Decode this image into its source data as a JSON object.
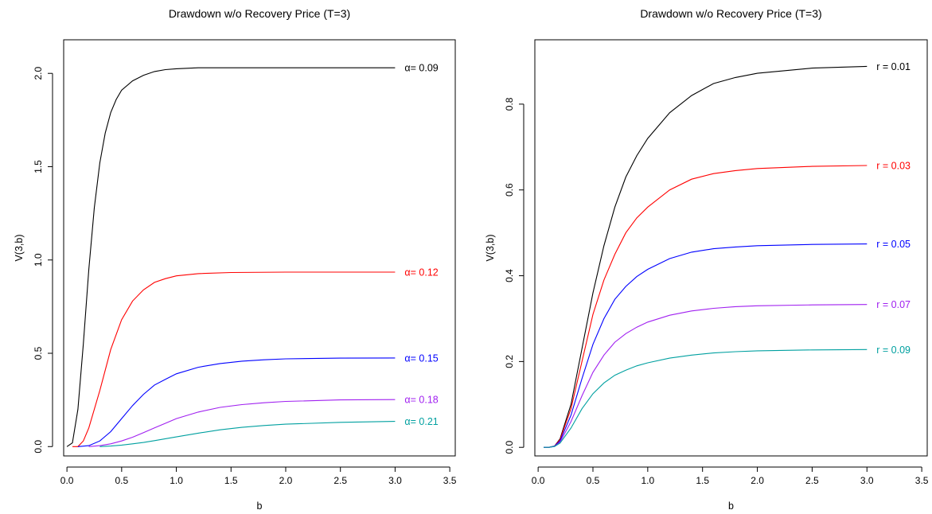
{
  "chart_data": [
    {
      "type": "line",
      "title": "Drawdown w/o Recovery Price (T=3)",
      "xlabel": "b",
      "ylabel": "V(3,b)",
      "xlim": [
        -0.03,
        3.55
      ],
      "ylim": [
        -0.05,
        2.18
      ],
      "xticks": [
        0.0,
        0.5,
        1.0,
        1.5,
        2.0,
        2.5,
        3.0,
        3.5
      ],
      "xtick_labels": [
        "0.0",
        "0.5",
        "1.0",
        "1.5",
        "2.0",
        "2.5",
        "3.0",
        "3.5"
      ],
      "yticks": [
        0.0,
        0.5,
        1.0,
        1.5,
        2.0
      ],
      "ytick_labels": [
        "0.0",
        "0.5",
        "1.0",
        "1.5",
        "2.0"
      ],
      "series": [
        {
          "name": "α= 0.09",
          "color": "#000000",
          "x": [
            0,
            0.05,
            0.1,
            0.15,
            0.2,
            0.25,
            0.3,
            0.35,
            0.4,
            0.45,
            0.5,
            0.6,
            0.7,
            0.8,
            0.9,
            1.0,
            1.2,
            1.5,
            2.0,
            2.5,
            3.0
          ],
          "y": [
            0,
            0.02,
            0.2,
            0.55,
            0.95,
            1.28,
            1.52,
            1.68,
            1.79,
            1.86,
            1.91,
            1.96,
            1.99,
            2.01,
            2.02,
            2.025,
            2.03,
            2.03,
            2.03,
            2.03,
            2.03
          ]
        },
        {
          "name": "α= 0.12",
          "color": "#ff0000",
          "x": [
            0.05,
            0.1,
            0.15,
            0.2,
            0.3,
            0.4,
            0.5,
            0.6,
            0.7,
            0.8,
            0.9,
            1.0,
            1.2,
            1.5,
            2.0,
            2.5,
            3.0
          ],
          "y": [
            0,
            0.0,
            0.03,
            0.1,
            0.3,
            0.52,
            0.68,
            0.78,
            0.84,
            0.88,
            0.9,
            0.915,
            0.927,
            0.933,
            0.935,
            0.935,
            0.935
          ]
        },
        {
          "name": "α= 0.15",
          "color": "#0000ff",
          "x": [
            0.1,
            0.2,
            0.3,
            0.4,
            0.5,
            0.6,
            0.7,
            0.8,
            0.9,
            1.0,
            1.2,
            1.4,
            1.6,
            1.8,
            2.0,
            2.5,
            3.0
          ],
          "y": [
            0,
            0.005,
            0.03,
            0.08,
            0.15,
            0.22,
            0.28,
            0.33,
            0.36,
            0.39,
            0.425,
            0.445,
            0.458,
            0.465,
            0.47,
            0.474,
            0.475
          ]
        },
        {
          "name": "α= 0.18",
          "color": "#a020f0",
          "x": [
            0.2,
            0.3,
            0.4,
            0.5,
            0.6,
            0.7,
            0.8,
            0.9,
            1.0,
            1.2,
            1.4,
            1.6,
            1.8,
            2.0,
            2.5,
            3.0
          ],
          "y": [
            0,
            0.005,
            0.015,
            0.03,
            0.05,
            0.075,
            0.1,
            0.125,
            0.15,
            0.185,
            0.21,
            0.225,
            0.235,
            0.242,
            0.25,
            0.252
          ]
        },
        {
          "name": "α= 0.21",
          "color": "#00a0a0",
          "x": [
            0.3,
            0.4,
            0.5,
            0.6,
            0.7,
            0.8,
            0.9,
            1.0,
            1.2,
            1.4,
            1.6,
            1.8,
            2.0,
            2.5,
            3.0
          ],
          "y": [
            0,
            0.003,
            0.008,
            0.015,
            0.022,
            0.032,
            0.042,
            0.052,
            0.072,
            0.09,
            0.103,
            0.113,
            0.12,
            0.13,
            0.135
          ]
        }
      ]
    },
    {
      "type": "line",
      "title": "Drawdown w/o Recovery Price (T=3)",
      "xlabel": "b",
      "ylabel": "V(3,b)",
      "xlim": [
        -0.03,
        3.55
      ],
      "ylim": [
        -0.02,
        0.95
      ],
      "xticks": [
        0.0,
        0.5,
        1.0,
        1.5,
        2.0,
        2.5,
        3.0,
        3.5
      ],
      "xtick_labels": [
        "0.0",
        "0.5",
        "1.0",
        "1.5",
        "2.0",
        "2.5",
        "3.0",
        "3.5"
      ],
      "yticks": [
        0.0,
        0.2,
        0.4,
        0.6,
        0.8
      ],
      "ytick_labels": [
        "0.0",
        "0.2",
        "0.4",
        "0.6",
        "0.8"
      ],
      "series": [
        {
          "name": "r = 0.01",
          "color": "#000000",
          "x": [
            0.05,
            0.1,
            0.15,
            0.2,
            0.3,
            0.4,
            0.5,
            0.6,
            0.7,
            0.8,
            0.9,
            1.0,
            1.2,
            1.4,
            1.6,
            1.8,
            2.0,
            2.5,
            3.0
          ],
          "y": [
            0,
            0.0,
            0.003,
            0.02,
            0.1,
            0.23,
            0.36,
            0.47,
            0.56,
            0.63,
            0.68,
            0.72,
            0.78,
            0.82,
            0.848,
            0.862,
            0.872,
            0.884,
            0.888
          ]
        },
        {
          "name": "r = 0.03",
          "color": "#ff0000",
          "x": [
            0.05,
            0.1,
            0.15,
            0.2,
            0.3,
            0.4,
            0.5,
            0.6,
            0.7,
            0.8,
            0.9,
            1.0,
            1.2,
            1.4,
            1.6,
            1.8,
            2.0,
            2.5,
            3.0
          ],
          "y": [
            0,
            0.0,
            0.003,
            0.018,
            0.09,
            0.2,
            0.31,
            0.39,
            0.45,
            0.5,
            0.535,
            0.56,
            0.6,
            0.625,
            0.638,
            0.645,
            0.65,
            0.655,
            0.657
          ]
        },
        {
          "name": "r = 0.05",
          "color": "#0000ff",
          "x": [
            0.05,
            0.1,
            0.15,
            0.2,
            0.3,
            0.4,
            0.5,
            0.6,
            0.7,
            0.8,
            0.9,
            1.0,
            1.2,
            1.4,
            1.6,
            1.8,
            2.0,
            2.5,
            3.0
          ],
          "y": [
            0,
            0.0,
            0.003,
            0.015,
            0.075,
            0.16,
            0.24,
            0.3,
            0.345,
            0.375,
            0.398,
            0.415,
            0.44,
            0.455,
            0.463,
            0.467,
            0.47,
            0.473,
            0.474
          ]
        },
        {
          "name": "r = 0.07",
          "color": "#a020f0",
          "x": [
            0.05,
            0.1,
            0.15,
            0.2,
            0.3,
            0.4,
            0.5,
            0.6,
            0.7,
            0.8,
            0.9,
            1.0,
            1.2,
            1.4,
            1.6,
            1.8,
            2.0,
            2.5,
            3.0
          ],
          "y": [
            0,
            0.0,
            0.002,
            0.012,
            0.06,
            0.12,
            0.175,
            0.215,
            0.245,
            0.265,
            0.28,
            0.292,
            0.308,
            0.318,
            0.324,
            0.328,
            0.33,
            0.332,
            0.333
          ]
        },
        {
          "name": "r = 0.09",
          "color": "#00a0a0",
          "x": [
            0.05,
            0.1,
            0.15,
            0.2,
            0.3,
            0.4,
            0.5,
            0.6,
            0.7,
            0.8,
            0.9,
            1.0,
            1.2,
            1.4,
            1.6,
            1.8,
            2.0,
            2.5,
            3.0
          ],
          "y": [
            0,
            0.0,
            0.002,
            0.01,
            0.045,
            0.09,
            0.125,
            0.15,
            0.168,
            0.18,
            0.19,
            0.197,
            0.208,
            0.215,
            0.22,
            0.223,
            0.225,
            0.227,
            0.228
          ]
        }
      ]
    }
  ]
}
